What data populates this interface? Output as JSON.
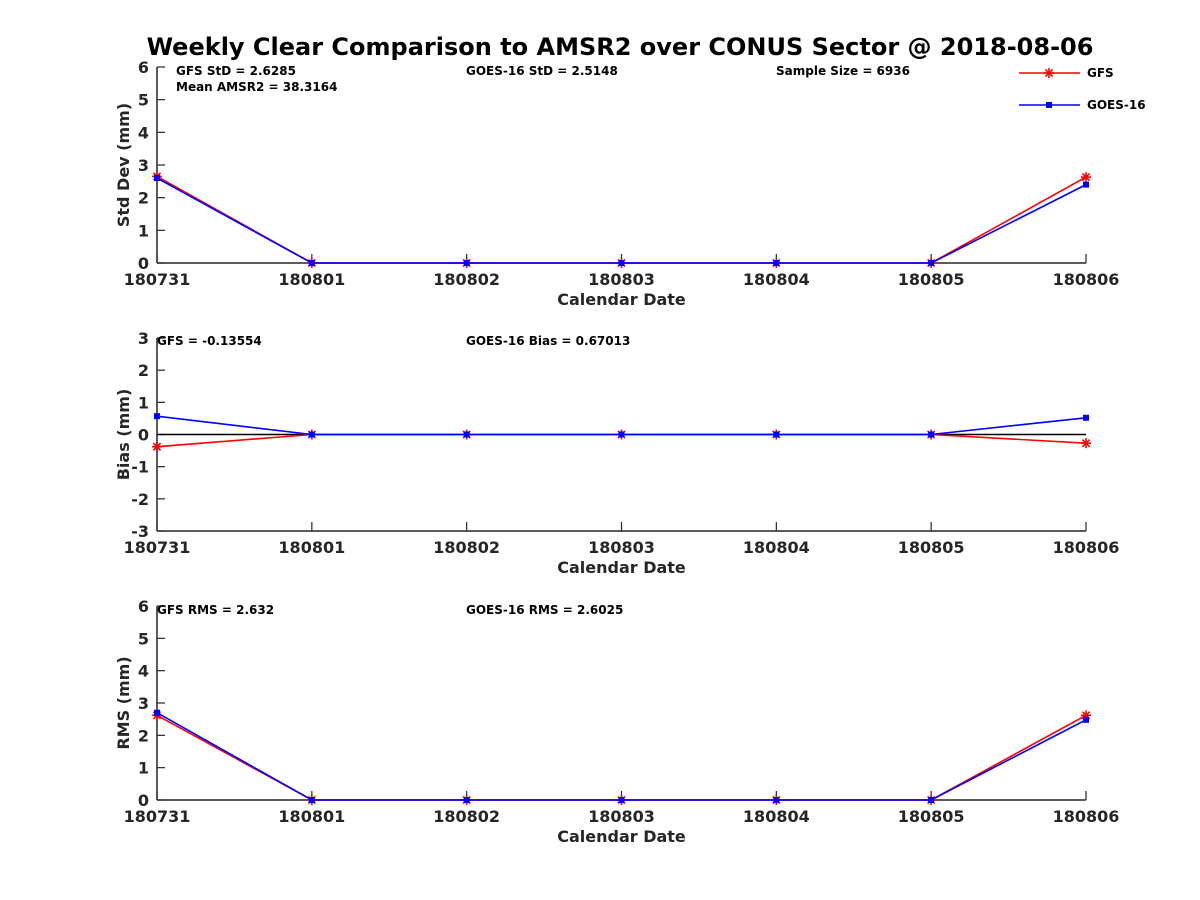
{
  "figure": {
    "title": "Weekly Clear Comparison to AMSR2 over CONUS Sector @ 2018-08-06"
  },
  "legend": {
    "placement": "top-right",
    "entries": [
      {
        "label": "GFS",
        "color": "#ff0000",
        "marker": "asterisk"
      },
      {
        "label": "GOES-16",
        "color": "#0000ff",
        "marker": "square"
      }
    ]
  },
  "chart_data": [
    {
      "type": "line",
      "xlabel": "Calendar Date",
      "ylabel": "Std Dev (mm)",
      "categories": [
        "180731",
        "180801",
        "180802",
        "180803",
        "180804",
        "180805",
        "180806"
      ],
      "ylim": [
        0,
        6
      ],
      "yticks": [
        "0",
        "1",
        "2",
        "3",
        "4",
        "5",
        "6"
      ],
      "zero_line": false,
      "annotations": [
        "GFS StD = 2.6285",
        "Mean AMSR2 = 38.3164",
        "GOES-16 StD = 2.5148",
        "Sample Size = 6936"
      ],
      "series": [
        {
          "name": "GFS",
          "color": "#ff0000",
          "values": [
            2.65,
            0,
            0,
            0,
            0,
            0,
            2.63
          ]
        },
        {
          "name": "GOES-16",
          "color": "#0000ff",
          "values": [
            2.6,
            0,
            0,
            0,
            0,
            0,
            2.4
          ]
        }
      ]
    },
    {
      "type": "line",
      "xlabel": "Calendar Date",
      "ylabel": "Bias (mm)",
      "categories": [
        "180731",
        "180801",
        "180802",
        "180803",
        "180804",
        "180805",
        "180806"
      ],
      "ylim": [
        -3,
        3
      ],
      "yticks": [
        "-3",
        "-2",
        "-1",
        "0",
        "1",
        "2",
        "3"
      ],
      "zero_line": true,
      "annotations": [
        "GFS = -0.13554",
        "GOES-16 Bias  = 0.67013"
      ],
      "series": [
        {
          "name": "GFS",
          "color": "#ff0000",
          "values": [
            -0.38,
            0,
            0,
            0,
            0,
            0,
            -0.27
          ]
        },
        {
          "name": "GOES-16",
          "color": "#0000ff",
          "values": [
            0.57,
            0,
            0,
            0,
            0,
            0,
            0.52
          ]
        }
      ]
    },
    {
      "type": "line",
      "xlabel": "Calendar Date",
      "ylabel": "RMS (mm)",
      "categories": [
        "180731",
        "180801",
        "180802",
        "180803",
        "180804",
        "180805",
        "180806"
      ],
      "ylim": [
        0,
        6
      ],
      "yticks": [
        "0",
        "1",
        "2",
        "3",
        "4",
        "5",
        "6"
      ],
      "zero_line": false,
      "annotations": [
        "GFS RMS = 2.632",
        "GOES-16 RMS = 2.6025"
      ],
      "series": [
        {
          "name": "GFS",
          "color": "#ff0000",
          "values": [
            2.62,
            0,
            0,
            0,
            0,
            0,
            2.62
          ]
        },
        {
          "name": "GOES-16",
          "color": "#0000ff",
          "values": [
            2.7,
            0,
            0,
            0,
            0,
            0,
            2.48
          ]
        }
      ]
    }
  ]
}
